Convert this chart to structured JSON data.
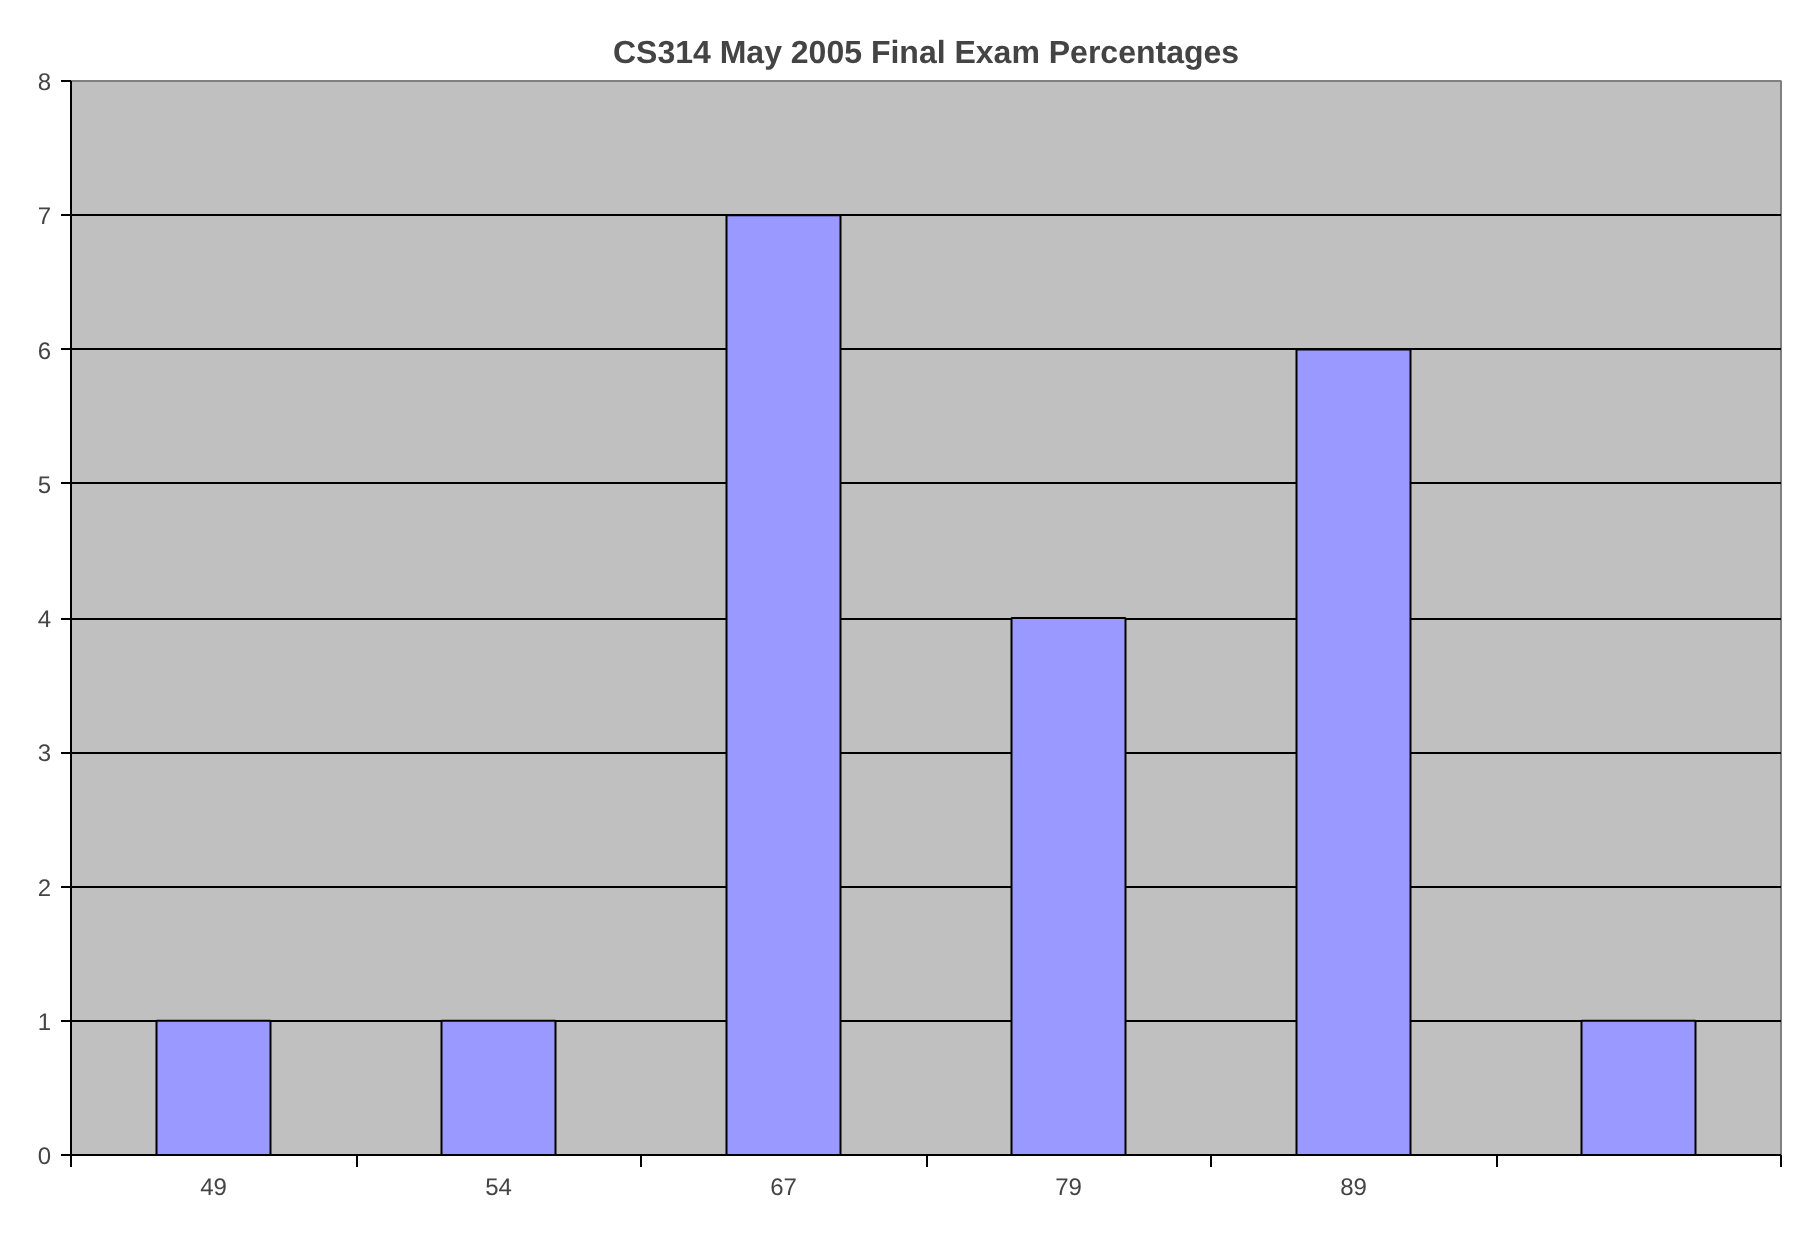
{
  "chart_data": {
    "type": "bar",
    "title": "CS314 May 2005 Final Exam Percentages",
    "categories": [
      "49",
      "54",
      "67",
      "79",
      "89",
      null
    ],
    "values": [
      1,
      1,
      7,
      4,
      6,
      1
    ],
    "color": "#9999ff",
    "ylim": [
      0,
      8
    ],
    "yticks": [
      0,
      1,
      2,
      3,
      4,
      5,
      6,
      7,
      8
    ],
    "grid": "y"
  }
}
